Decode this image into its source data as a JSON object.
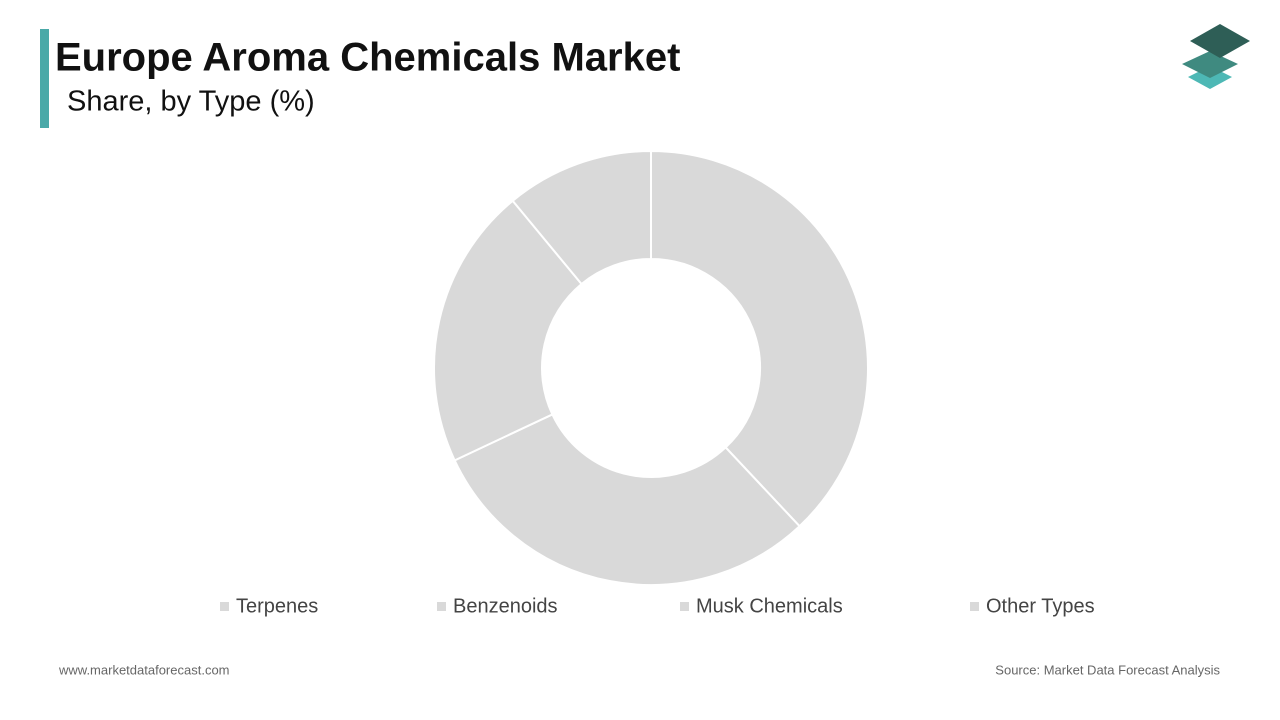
{
  "chart_data": {
    "type": "donut",
    "title": "Europe Aroma Chemicals Market",
    "subtitle": "Share, by Type (%)",
    "categories": [
      "Terpenes",
      "Benzenoids",
      "Musk Chemicals",
      "Other Types"
    ],
    "values": [
      38,
      30,
      21,
      11
    ],
    "colors": [
      "#d9d9d9",
      "#d9d9d9",
      "#d9d9d9",
      "#d9d9d9"
    ],
    "website": "www.marketdataforecast.com",
    "source": "Source: Market Data Forecast Analysis"
  }
}
